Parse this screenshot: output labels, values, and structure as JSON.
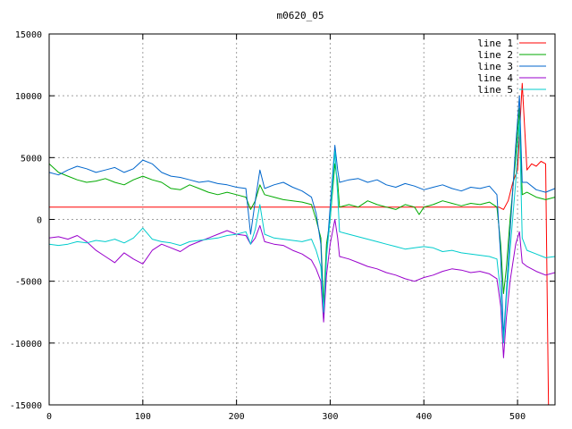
{
  "chart_data": {
    "type": "line",
    "title": "m0620_05",
    "xlabel": "",
    "ylabel": "",
    "xlim": [
      0,
      540
    ],
    "ylim": [
      -15000,
      15000
    ],
    "xticks": [
      0,
      100,
      200,
      300,
      400,
      500
    ],
    "yticks": [
      -15000,
      -10000,
      -5000,
      0,
      5000,
      10000,
      15000
    ],
    "grid": true,
    "legend_position": "top-right",
    "series": [
      {
        "name": "line 1",
        "color": "#ff0000",
        "points": [
          [
            0,
            1000
          ],
          [
            480,
            1000
          ],
          [
            485,
            800
          ],
          [
            490,
            1500
          ],
          [
            495,
            3000
          ],
          [
            500,
            4000
          ],
          [
            505,
            11000
          ],
          [
            510,
            4000
          ],
          [
            515,
            4500
          ],
          [
            520,
            4300
          ],
          [
            525,
            4700
          ],
          [
            530,
            4500
          ],
          [
            533,
            -15000
          ]
        ]
      },
      {
        "name": "line 2",
        "color": "#00aa00",
        "points": [
          [
            0,
            4500
          ],
          [
            10,
            3800
          ],
          [
            20,
            3500
          ],
          [
            30,
            3200
          ],
          [
            40,
            3000
          ],
          [
            50,
            3100
          ],
          [
            60,
            3300
          ],
          [
            70,
            3000
          ],
          [
            80,
            2800
          ],
          [
            90,
            3200
          ],
          [
            100,
            3500
          ],
          [
            110,
            3200
          ],
          [
            120,
            3000
          ],
          [
            130,
            2500
          ],
          [
            140,
            2400
          ],
          [
            150,
            2800
          ],
          [
            160,
            2500
          ],
          [
            170,
            2200
          ],
          [
            180,
            2000
          ],
          [
            190,
            2200
          ],
          [
            200,
            2000
          ],
          [
            210,
            1800
          ],
          [
            215,
            800
          ],
          [
            220,
            1500
          ],
          [
            225,
            2800
          ],
          [
            230,
            2000
          ],
          [
            240,
            1800
          ],
          [
            250,
            1600
          ],
          [
            260,
            1500
          ],
          [
            270,
            1400
          ],
          [
            280,
            1200
          ],
          [
            285,
            0
          ],
          [
            290,
            -1500
          ],
          [
            293,
            -7000
          ],
          [
            296,
            -2000
          ],
          [
            300,
            0
          ],
          [
            305,
            4500
          ],
          [
            308,
            3000
          ],
          [
            310,
            1000
          ],
          [
            320,
            1200
          ],
          [
            330,
            1000
          ],
          [
            340,
            1500
          ],
          [
            350,
            1200
          ],
          [
            360,
            1000
          ],
          [
            370,
            800
          ],
          [
            380,
            1200
          ],
          [
            390,
            1000
          ],
          [
            395,
            400
          ],
          [
            400,
            1000
          ],
          [
            410,
            1200
          ],
          [
            420,
            1500
          ],
          [
            430,
            1300
          ],
          [
            440,
            1100
          ],
          [
            450,
            1300
          ],
          [
            460,
            1200
          ],
          [
            470,
            1400
          ],
          [
            478,
            1000
          ],
          [
            482,
            -2000
          ],
          [
            485,
            -6000
          ],
          [
            488,
            -4000
          ],
          [
            492,
            0
          ],
          [
            498,
            5000
          ],
          [
            502,
            9000
          ],
          [
            505,
            2000
          ],
          [
            510,
            2200
          ],
          [
            520,
            1800
          ],
          [
            530,
            1600
          ],
          [
            540,
            1800
          ]
        ]
      },
      {
        "name": "line 3",
        "color": "#0066cc",
        "points": [
          [
            0,
            3800
          ],
          [
            10,
            3600
          ],
          [
            20,
            4000
          ],
          [
            30,
            4300
          ],
          [
            40,
            4100
          ],
          [
            50,
            3800
          ],
          [
            60,
            4000
          ],
          [
            70,
            4200
          ],
          [
            80,
            3800
          ],
          [
            90,
            4100
          ],
          [
            100,
            4800
          ],
          [
            110,
            4500
          ],
          [
            120,
            3800
          ],
          [
            130,
            3500
          ],
          [
            140,
            3400
          ],
          [
            150,
            3200
          ],
          [
            160,
            3000
          ],
          [
            170,
            3100
          ],
          [
            180,
            2900
          ],
          [
            190,
            2800
          ],
          [
            200,
            2600
          ],
          [
            210,
            2500
          ],
          [
            215,
            -1200
          ],
          [
            220,
            1500
          ],
          [
            225,
            4000
          ],
          [
            230,
            2500
          ],
          [
            240,
            2800
          ],
          [
            250,
            3000
          ],
          [
            260,
            2600
          ],
          [
            270,
            2300
          ],
          [
            280,
            1800
          ],
          [
            285,
            500
          ],
          [
            290,
            -2000
          ],
          [
            293,
            -8000
          ],
          [
            296,
            -3000
          ],
          [
            300,
            1000
          ],
          [
            305,
            6000
          ],
          [
            308,
            4000
          ],
          [
            310,
            3000
          ],
          [
            320,
            3200
          ],
          [
            330,
            3300
          ],
          [
            340,
            3000
          ],
          [
            350,
            3200
          ],
          [
            360,
            2800
          ],
          [
            370,
            2600
          ],
          [
            380,
            2900
          ],
          [
            390,
            2700
          ],
          [
            400,
            2400
          ],
          [
            410,
            2600
          ],
          [
            420,
            2800
          ],
          [
            430,
            2500
          ],
          [
            440,
            2300
          ],
          [
            450,
            2600
          ],
          [
            460,
            2500
          ],
          [
            470,
            2700
          ],
          [
            478,
            2000
          ],
          [
            482,
            -3000
          ],
          [
            485,
            -9500
          ],
          [
            488,
            -6000
          ],
          [
            492,
            -1000
          ],
          [
            498,
            6000
          ],
          [
            502,
            10000
          ],
          [
            505,
            3000
          ],
          [
            510,
            3000
          ],
          [
            520,
            2400
          ],
          [
            530,
            2200
          ],
          [
            540,
            2500
          ]
        ]
      },
      {
        "name": "line 4",
        "color": "#9900cc",
        "points": [
          [
            0,
            -1500
          ],
          [
            10,
            -1400
          ],
          [
            20,
            -1600
          ],
          [
            30,
            -1300
          ],
          [
            40,
            -1800
          ],
          [
            50,
            -2500
          ],
          [
            60,
            -3000
          ],
          [
            70,
            -3500
          ],
          [
            80,
            -2700
          ],
          [
            90,
            -3200
          ],
          [
            100,
            -3600
          ],
          [
            110,
            -2500
          ],
          [
            120,
            -2000
          ],
          [
            130,
            -2300
          ],
          [
            140,
            -2600
          ],
          [
            150,
            -2100
          ],
          [
            160,
            -1800
          ],
          [
            170,
            -1500
          ],
          [
            180,
            -1200
          ],
          [
            190,
            -900
          ],
          [
            200,
            -1200
          ],
          [
            210,
            -1300
          ],
          [
            215,
            -2000
          ],
          [
            220,
            -1500
          ],
          [
            225,
            -500
          ],
          [
            230,
            -1800
          ],
          [
            240,
            -2000
          ],
          [
            250,
            -2100
          ],
          [
            260,
            -2500
          ],
          [
            270,
            -2800
          ],
          [
            280,
            -3300
          ],
          [
            285,
            -4000
          ],
          [
            290,
            -5000
          ],
          [
            293,
            -8300
          ],
          [
            296,
            -4500
          ],
          [
            300,
            -2000
          ],
          [
            305,
            0
          ],
          [
            308,
            -1500
          ],
          [
            310,
            -3000
          ],
          [
            320,
            -3200
          ],
          [
            330,
            -3500
          ],
          [
            340,
            -3800
          ],
          [
            350,
            -4000
          ],
          [
            360,
            -4300
          ],
          [
            370,
            -4500
          ],
          [
            380,
            -4800
          ],
          [
            390,
            -5000
          ],
          [
            400,
            -4700
          ],
          [
            410,
            -4500
          ],
          [
            420,
            -4200
          ],
          [
            430,
            -4000
          ],
          [
            440,
            -4100
          ],
          [
            450,
            -4300
          ],
          [
            460,
            -4200
          ],
          [
            470,
            -4400
          ],
          [
            478,
            -4800
          ],
          [
            482,
            -7000
          ],
          [
            485,
            -11200
          ],
          [
            488,
            -8000
          ],
          [
            492,
            -5000
          ],
          [
            498,
            -2000
          ],
          [
            502,
            -1000
          ],
          [
            505,
            -3500
          ],
          [
            510,
            -3800
          ],
          [
            520,
            -4200
          ],
          [
            530,
            -4500
          ],
          [
            540,
            -4300
          ]
        ]
      },
      {
        "name": "line 5",
        "color": "#00cccc",
        "points": [
          [
            0,
            -2000
          ],
          [
            10,
            -2100
          ],
          [
            20,
            -2000
          ],
          [
            30,
            -1800
          ],
          [
            40,
            -1900
          ],
          [
            50,
            -1700
          ],
          [
            60,
            -1800
          ],
          [
            70,
            -1600
          ],
          [
            80,
            -1900
          ],
          [
            90,
            -1500
          ],
          [
            100,
            -700
          ],
          [
            110,
            -1600
          ],
          [
            120,
            -1800
          ],
          [
            130,
            -1900
          ],
          [
            140,
            -2100
          ],
          [
            150,
            -1800
          ],
          [
            160,
            -1700
          ],
          [
            170,
            -1600
          ],
          [
            180,
            -1500
          ],
          [
            190,
            -1300
          ],
          [
            200,
            -1200
          ],
          [
            210,
            -1000
          ],
          [
            215,
            -2000
          ],
          [
            220,
            -800
          ],
          [
            225,
            1200
          ],
          [
            230,
            -1200
          ],
          [
            240,
            -1500
          ],
          [
            250,
            -1600
          ],
          [
            260,
            -1700
          ],
          [
            270,
            -1800
          ],
          [
            280,
            -1600
          ],
          [
            285,
            -2500
          ],
          [
            290,
            -3800
          ],
          [
            293,
            -7500
          ],
          [
            296,
            -3000
          ],
          [
            300,
            0
          ],
          [
            305,
            5500
          ],
          [
            308,
            2000
          ],
          [
            310,
            -1000
          ],
          [
            320,
            -1200
          ],
          [
            330,
            -1400
          ],
          [
            340,
            -1600
          ],
          [
            350,
            -1800
          ],
          [
            360,
            -2000
          ],
          [
            370,
            -2200
          ],
          [
            380,
            -2400
          ],
          [
            390,
            -2300
          ],
          [
            400,
            -2200
          ],
          [
            410,
            -2300
          ],
          [
            420,
            -2600
          ],
          [
            430,
            -2500
          ],
          [
            440,
            -2700
          ],
          [
            450,
            -2800
          ],
          [
            460,
            -2900
          ],
          [
            470,
            -3000
          ],
          [
            478,
            -3200
          ],
          [
            482,
            -6000
          ],
          [
            485,
            -10000
          ],
          [
            488,
            -6500
          ],
          [
            492,
            -2500
          ],
          [
            498,
            3000
          ],
          [
            502,
            8000
          ],
          [
            505,
            -1500
          ],
          [
            510,
            -2500
          ],
          [
            520,
            -2800
          ],
          [
            530,
            -3100
          ],
          [
            540,
            -3000
          ]
        ]
      }
    ]
  }
}
